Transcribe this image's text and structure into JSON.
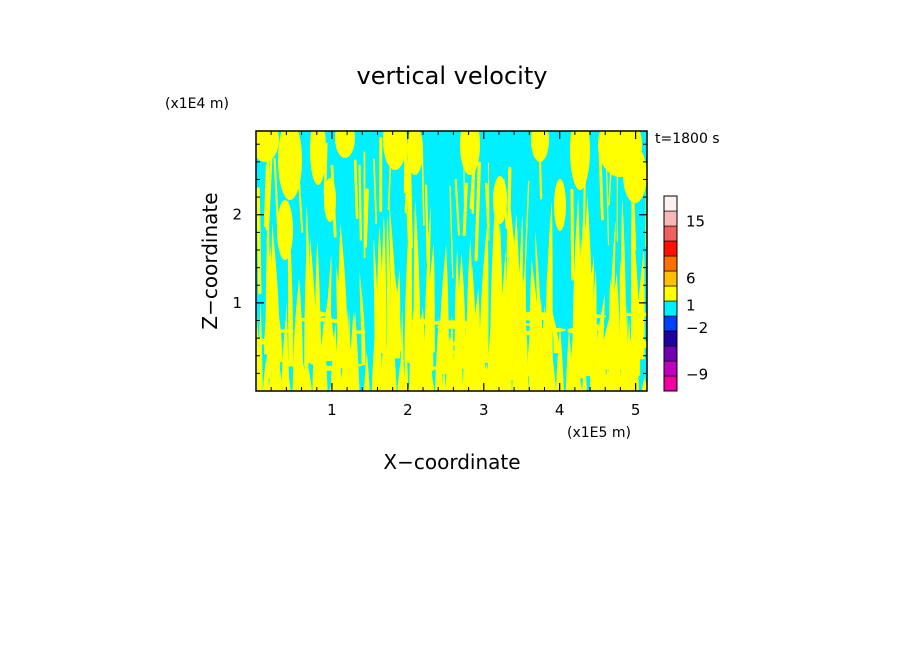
{
  "chart_data": {
    "type": "heatmap",
    "title": "vertical velocity",
    "xlabel": "X−coordinate",
    "ylabel": "Z−coordinate",
    "x_unit": "(x1E5 m)",
    "y_unit": "(x1E4 m)",
    "time_label": "t=1800 s",
    "xlim": [
      0,
      5.15
    ],
    "ylim": [
      0,
      2.95
    ],
    "x_ticks": [
      1,
      2,
      3,
      4,
      5
    ],
    "y_ticks": [
      1,
      2
    ],
    "dominant_fields": {
      "positive_small": {
        "range": "0 to 1",
        "color": "#ffff00"
      },
      "negative_small": {
        "range": "-1 to 0",
        "color": "#00f0ff"
      }
    },
    "colorbar": {
      "levels": [
        -12,
        -9,
        -6,
        -4,
        -2,
        -1,
        0,
        0.5,
        1,
        2,
        4,
        6,
        9,
        12,
        15,
        20
      ],
      "labels": [
        "15",
        "6",
        "1",
        "−2",
        "−9"
      ],
      "colors": [
        "#f000a0",
        "#c000c0",
        "#7000b0",
        "#2000a0",
        "#0040ff",
        "#00f0ff",
        "#ffff00",
        "#ffc000",
        "#ff7000",
        "#ff1000",
        "#f06060",
        "#f8b8b8",
        "#fff0f0"
      ]
    }
  }
}
